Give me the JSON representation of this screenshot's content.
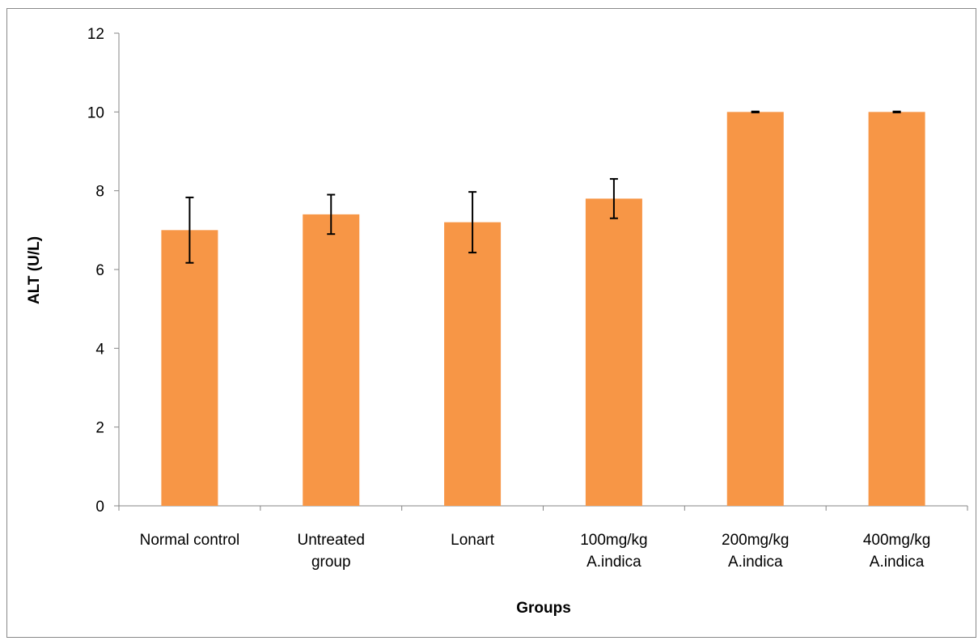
{
  "chart_data": {
    "type": "bar",
    "categories": [
      [
        "Normal control"
      ],
      [
        "Untreated",
        "group"
      ],
      [
        "Lonart"
      ],
      [
        "100mg/kg",
        "A.indica"
      ],
      [
        "200mg/kg",
        "A.indica"
      ],
      [
        "400mg/kg",
        "A.indica"
      ]
    ],
    "values": [
      7.0,
      7.4,
      7.2,
      7.8,
      10.0,
      10.0
    ],
    "error": [
      0.83,
      0.5,
      0.77,
      0.5,
      0.0,
      0.0
    ],
    "ylim": [
      0,
      12
    ],
    "yticks": [
      0,
      2,
      4,
      6,
      8,
      10,
      12
    ],
    "ylabel": "ALT (U/L)",
    "xlabel": "Groups",
    "grid": false,
    "bar_color": "#f79646",
    "error_color": "#000000",
    "axis_color": "#868686"
  }
}
